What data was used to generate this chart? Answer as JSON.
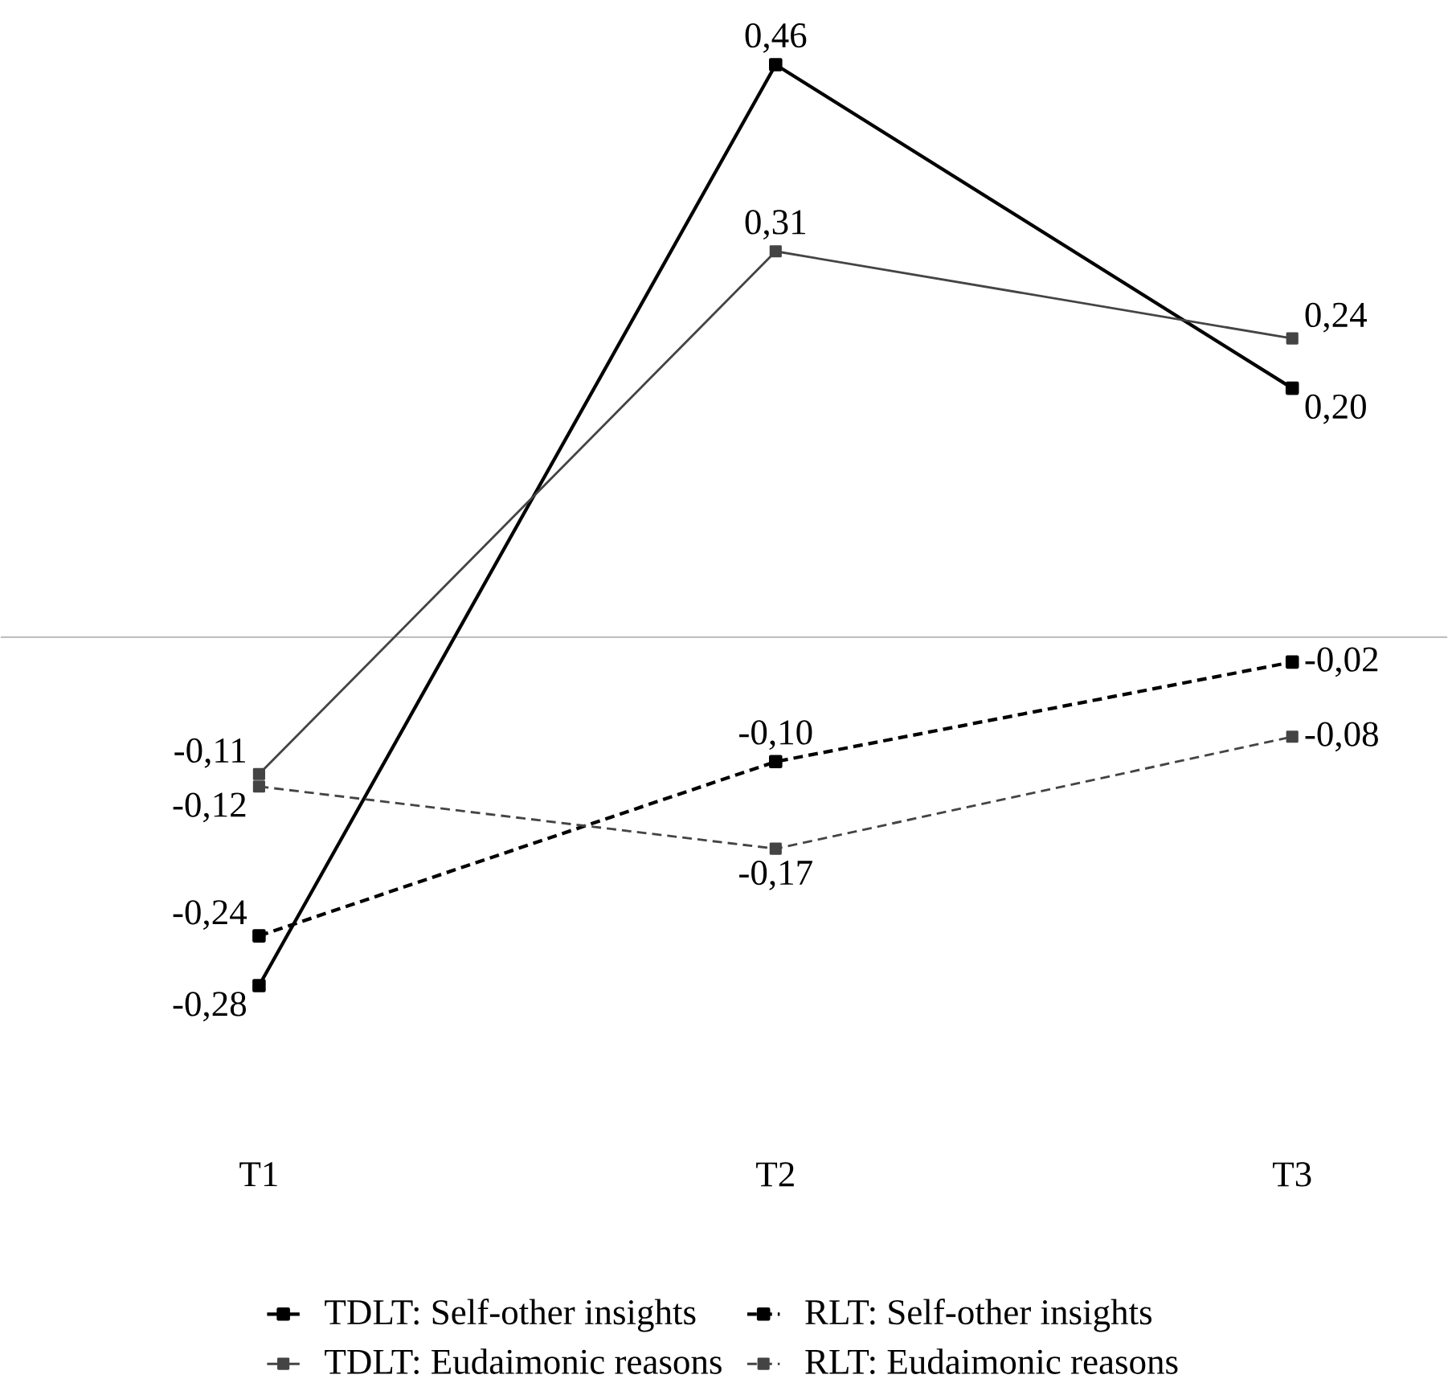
{
  "chart_data": {
    "type": "line",
    "categories": [
      "T1",
      "T2",
      "T3"
    ],
    "series": [
      {
        "name": "TDLT: Self-other insights",
        "color": "#000000",
        "line_style": "solid",
        "values": [
          -0.28,
          0.46,
          0.2
        ],
        "value_labels": [
          "-0,28",
          "0,46",
          "0,20"
        ]
      },
      {
        "name": "RLT: Self-other insights",
        "color": "#000000",
        "line_style": "dashed",
        "values": [
          -0.24,
          -0.1,
          -0.02
        ],
        "value_labels": [
          "-0,24",
          "-0,10",
          "-0,02"
        ]
      },
      {
        "name": "TDLT: Eudaimonic reasons",
        "color": "#444444",
        "line_style": "solid",
        "values": [
          -0.11,
          0.31,
          0.24
        ],
        "value_labels": [
          "-0,11",
          "0,31",
          "0,24"
        ]
      },
      {
        "name": "RLT: Eudaimonic reasons",
        "color": "#444444",
        "line_style": "dashed",
        "values": [
          -0.12,
          -0.17,
          -0.08
        ],
        "value_labels": [
          "-0,12",
          "-0,17",
          "-0,08"
        ]
      }
    ],
    "marker": "square",
    "legend": "bottom",
    "grid": false
  }
}
